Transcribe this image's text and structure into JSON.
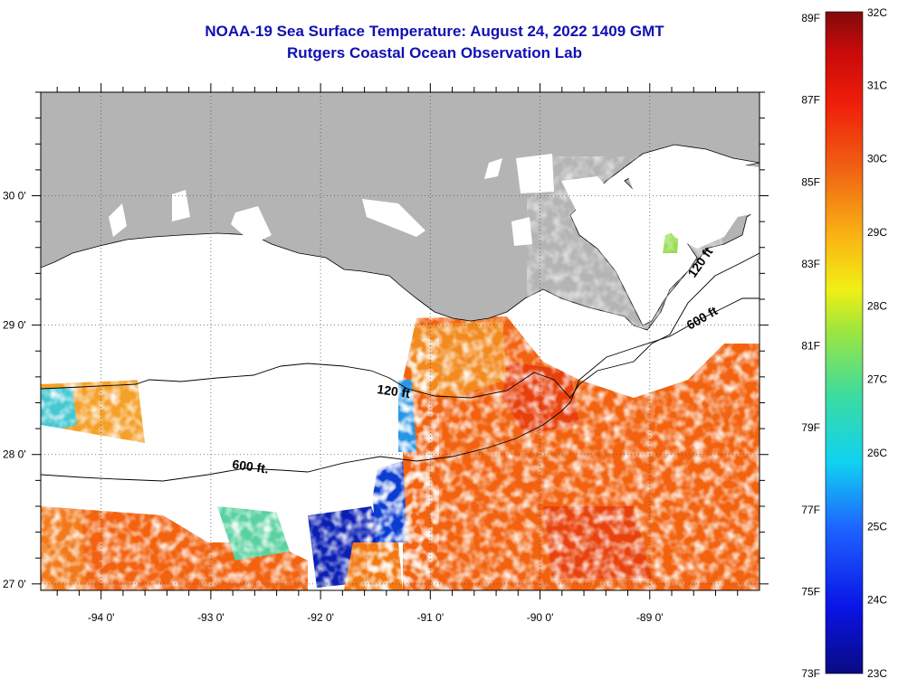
{
  "title": {
    "line1": "NOAA-19 Sea Surface Temperature:  August 24, 2022 1409 GMT",
    "line2": "Rutgers Coastal Ocean Observation Lab"
  },
  "map": {
    "lon_labels": [
      "-94 0'",
      "-93 0'",
      "-92 0'",
      "-91 0'",
      "-90 0'",
      "-89 0'"
    ],
    "lat_labels": [
      "30 0'",
      "29 0'",
      "28 0'",
      "27 0'"
    ],
    "lon_range": [
      -94.55,
      -88.0
    ],
    "lat_range": [
      26.95,
      30.8
    ],
    "contour_labels": [
      "120 ft",
      "600 ft",
      "120 ft",
      "600 ft."
    ],
    "colors": {
      "land": "#b4b4b4",
      "cloud": "#ffffff",
      "ocean_warm": "#f2620f"
    }
  },
  "colorbar": {
    "fahrenheit": [
      "89F",
      "87F",
      "85F",
      "83F",
      "81F",
      "79F",
      "77F",
      "75F",
      "73F"
    ],
    "celsius": [
      "32C",
      "31C",
      "30C",
      "29C",
      "28C",
      "27C",
      "26C",
      "25C",
      "24C",
      "23C"
    ],
    "min_c": 23,
    "max_c": 32
  }
}
